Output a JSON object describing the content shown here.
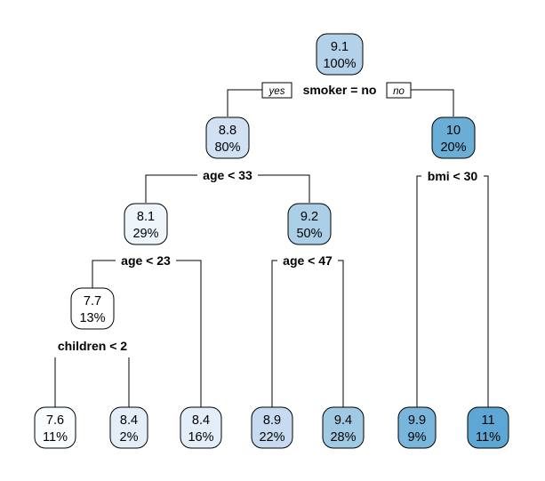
{
  "tree": {
    "nodes": {
      "root": {
        "value": "9.1",
        "pct": "100%",
        "color": "#b3d2e9"
      },
      "n_smoker_no": {
        "value": "8.8",
        "pct": "80%",
        "color": "#cfe1f2"
      },
      "n_smoker_yes": {
        "value": "10",
        "pct": "20%",
        "color": "#6aaed6"
      },
      "n_age_lt33": {
        "value": "8.1",
        "pct": "29%",
        "color": "#eef5fb"
      },
      "n_age_ge33": {
        "value": "9.2",
        "pct": "50%",
        "color": "#abcfe6"
      },
      "n_age_lt23": {
        "value": "7.7",
        "pct": "13%",
        "color": "#ffffff"
      },
      "leaf1": {
        "value": "7.6",
        "pct": "11%",
        "color": "#fafdff"
      },
      "leaf2": {
        "value": "8.4",
        "pct": "2%",
        "color": "#e4eef8"
      },
      "leaf3": {
        "value": "8.4",
        "pct": "16%",
        "color": "#e4eef8"
      },
      "leaf4": {
        "value": "8.9",
        "pct": "22%",
        "color": "#c6dbef"
      },
      "leaf5": {
        "value": "9.4",
        "pct": "28%",
        "color": "#a0c9e3"
      },
      "leaf6": {
        "value": "9.9",
        "pct": "9%",
        "color": "#7ab6dc"
      },
      "leaf7": {
        "value": "11",
        "pct": "11%",
        "color": "#5ea6d3"
      }
    },
    "splits": {
      "s_root": "smoker = no",
      "s_age33": "age < 33",
      "s_bmi30": "bmi < 30",
      "s_age23": "age < 23",
      "s_age47": "age < 47",
      "s_children2": "children < 2"
    },
    "branch_labels": {
      "yes": "yes",
      "no": "no"
    }
  }
}
